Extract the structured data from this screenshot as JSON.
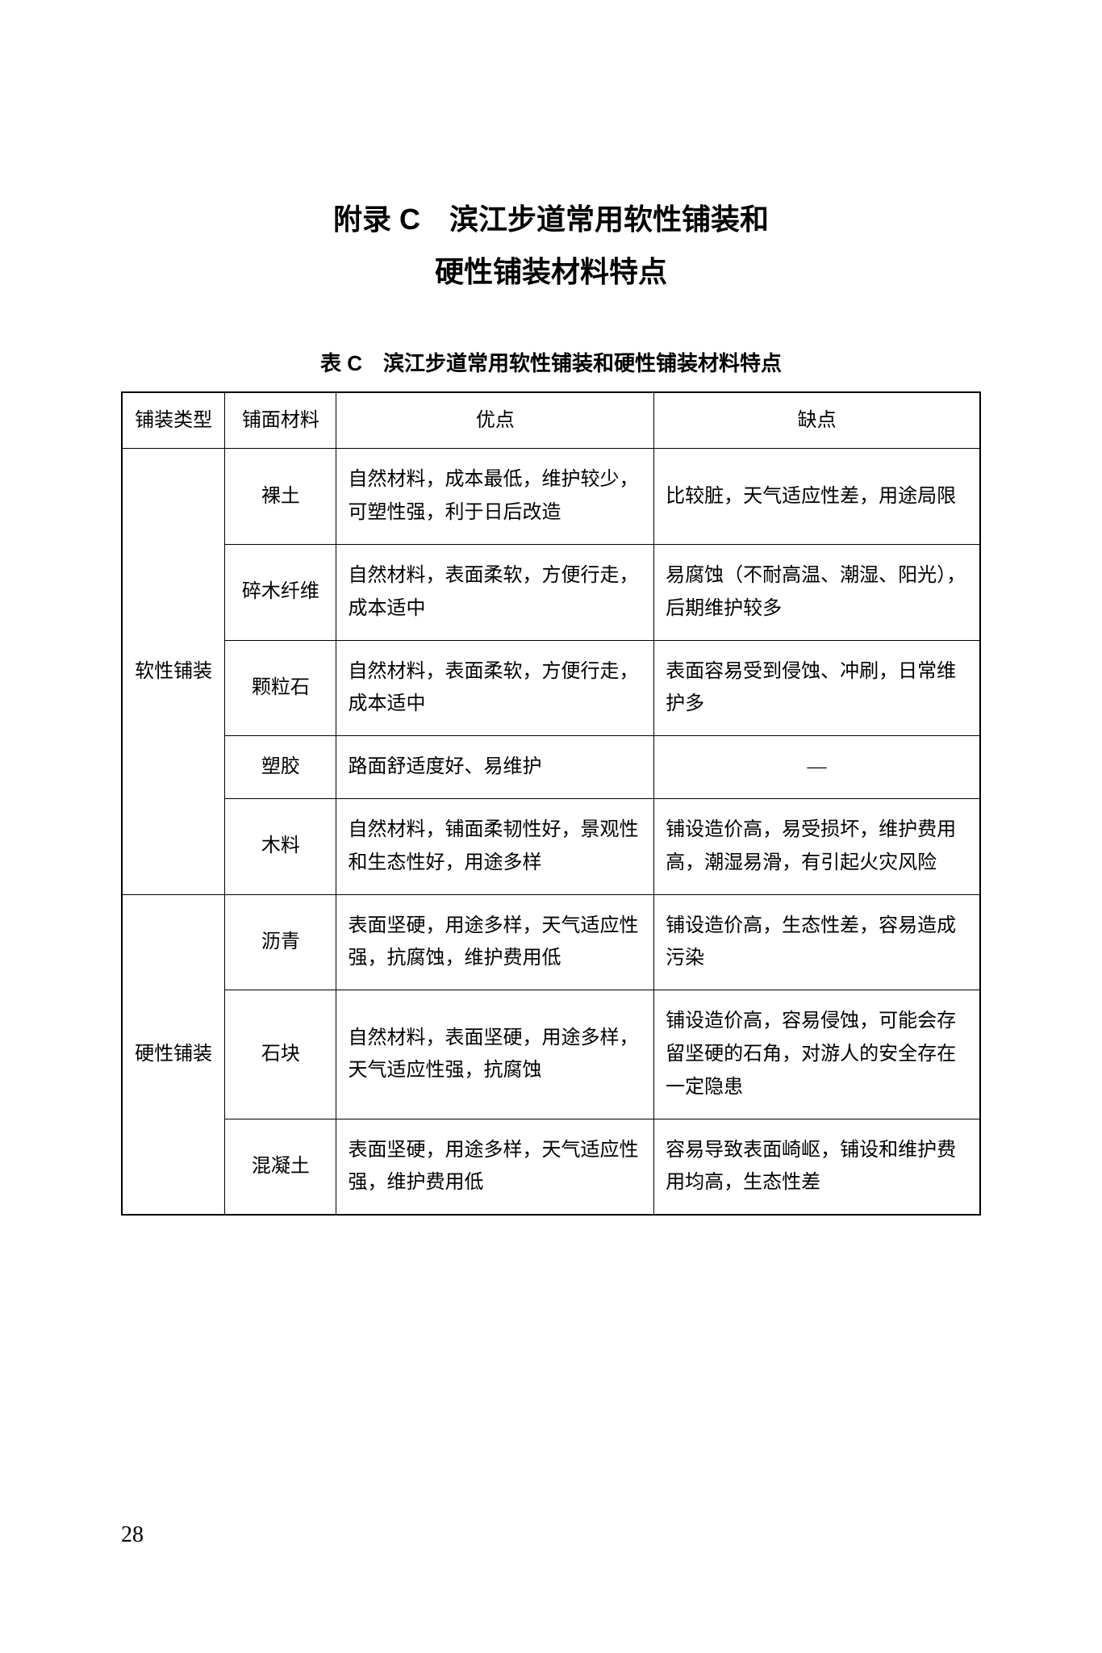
{
  "appendix": {
    "title_line1": "附录 C　滨江步道常用软性铺装和",
    "title_line2": "硬性铺装材料特点"
  },
  "table": {
    "caption": "表 C　滨江步道常用软性铺装和硬性铺装材料特点",
    "headers": {
      "type": "铺装类型",
      "material": "铺面材料",
      "advantage": "优点",
      "disadvantage": "缺点"
    },
    "groups": [
      {
        "type_label": "软性铺装",
        "rows": [
          {
            "material": "裸土",
            "advantage": "自然材料，成本最低，维护较少，可塑性强，利于日后改造",
            "disadvantage": "比较脏，天气适应性差，用途局限"
          },
          {
            "material": "碎木纤维",
            "advantage": "自然材料，表面柔软，方便行走，成本适中",
            "disadvantage": "易腐蚀（不耐高温、潮湿、阳光），后期维护较多"
          },
          {
            "material": "颗粒石",
            "advantage": "自然材料，表面柔软，方便行走，成本适中",
            "disadvantage": "表面容易受到侵蚀、冲刷，日常维护多"
          },
          {
            "material": "塑胶",
            "advantage": "路面舒适度好、易维护",
            "disadvantage": "—"
          },
          {
            "material": "木料",
            "advantage": "自然材料，铺面柔韧性好，景观性和生态性好，用途多样",
            "disadvantage": "铺设造价高，易受损坏，维护费用高，潮湿易滑，有引起火灾风险"
          }
        ]
      },
      {
        "type_label": "硬性铺装",
        "rows": [
          {
            "material": "沥青",
            "advantage": "表面坚硬，用途多样，天气适应性强，抗腐蚀，维护费用低",
            "disadvantage": "铺设造价高，生态性差，容易造成污染"
          },
          {
            "material": "石块",
            "advantage": "自然材料，表面坚硬，用途多样，天气适应性强，抗腐蚀",
            "disadvantage": "铺设造价高，容易侵蚀，可能会存留坚硬的石角，对游人的安全存在一定隐患"
          },
          {
            "material": "混凝土",
            "advantage": "表面坚硬，用途多样，天气适应性强，维护费用低",
            "disadvantage": "容易导致表面崎岖，铺设和维护费用均高，生态性差"
          }
        ]
      }
    ]
  },
  "page_number": "28"
}
